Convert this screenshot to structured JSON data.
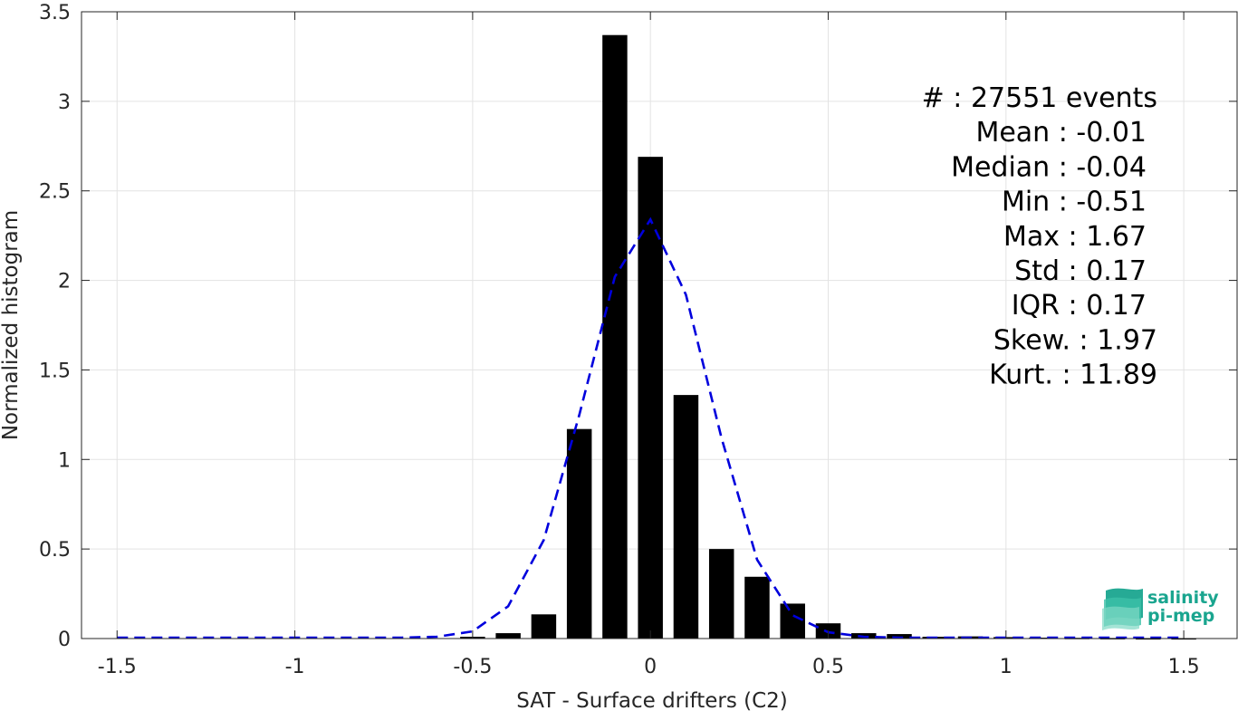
{
  "chart_data": {
    "type": "bar",
    "xlabel": "SAT - Surface drifters (C2)",
    "ylabel": "Normalized histogram",
    "xlim": [
      -1.6,
      1.65
    ],
    "ylim": [
      0,
      3.5
    ],
    "xticks": [
      -1.5,
      -1,
      -0.5,
      0,
      0.5,
      1,
      1.5
    ],
    "xtick_labels": [
      "-1.5",
      "-1",
      "-0.5",
      "0",
      "0.5",
      "1",
      "1.5"
    ],
    "yticks": [
      0,
      0.5,
      1,
      1.5,
      2,
      2.5,
      3,
      3.5
    ],
    "ytick_labels": [
      "0",
      "0.5",
      "1",
      "1.5",
      "2",
      "2.5",
      "3",
      "3.5"
    ],
    "grid": true,
    "bar_color": "#000000",
    "bar_width": 0.07,
    "bars": {
      "x": [
        -0.5,
        -0.4,
        -0.3,
        -0.2,
        -0.1,
        0.0,
        0.1,
        0.2,
        0.3,
        0.4,
        0.5,
        0.6,
        0.7,
        0.8,
        0.9,
        1.0,
        1.1,
        1.2,
        1.3,
        1.4,
        1.5
      ],
      "values": [
        0.01,
        0.03,
        0.135,
        1.17,
        3.37,
        2.69,
        1.36,
        0.5,
        0.345,
        0.195,
        0.085,
        0.03,
        0.025,
        0.01,
        0.012,
        0.008,
        0.005,
        0.004,
        0.003,
        0.002,
        0.002
      ]
    },
    "fit_curve": {
      "style": "dashed",
      "color": "#0000dd",
      "x": [
        -1.5,
        -1.4,
        -1.3,
        -1.2,
        -1.1,
        -1.0,
        -0.9,
        -0.8,
        -0.7,
        -0.6,
        -0.5,
        -0.4,
        -0.3,
        -0.2,
        -0.1,
        0.0,
        0.1,
        0.2,
        0.3,
        0.4,
        0.5,
        0.6,
        0.7,
        0.8,
        0.9,
        1.0,
        1.1,
        1.2,
        1.3,
        1.4,
        1.5
      ],
      "y": [
        0,
        0,
        0,
        0,
        0,
        0,
        0,
        0,
        0.002,
        0.01,
        0.04,
        0.18,
        0.55,
        1.25,
        2.02,
        2.34,
        1.92,
        1.12,
        0.44,
        0.13,
        0.035,
        0.01,
        0.003,
        0.001,
        0,
        0,
        0,
        0,
        0,
        0,
        0
      ]
    },
    "annotations": [
      "#  : 27551 events",
      "Mean : -0.01",
      "Median : -0.04",
      "Min : -0.51",
      "Max : 1.67",
      "Std : 0.17",
      "IQR : 0.17",
      "Skew. : 1.97",
      "Kurt. : 11.89"
    ]
  },
  "logo": {
    "line1": "salinity",
    "line2": "pi-mep",
    "color": "#1aa58f"
  }
}
